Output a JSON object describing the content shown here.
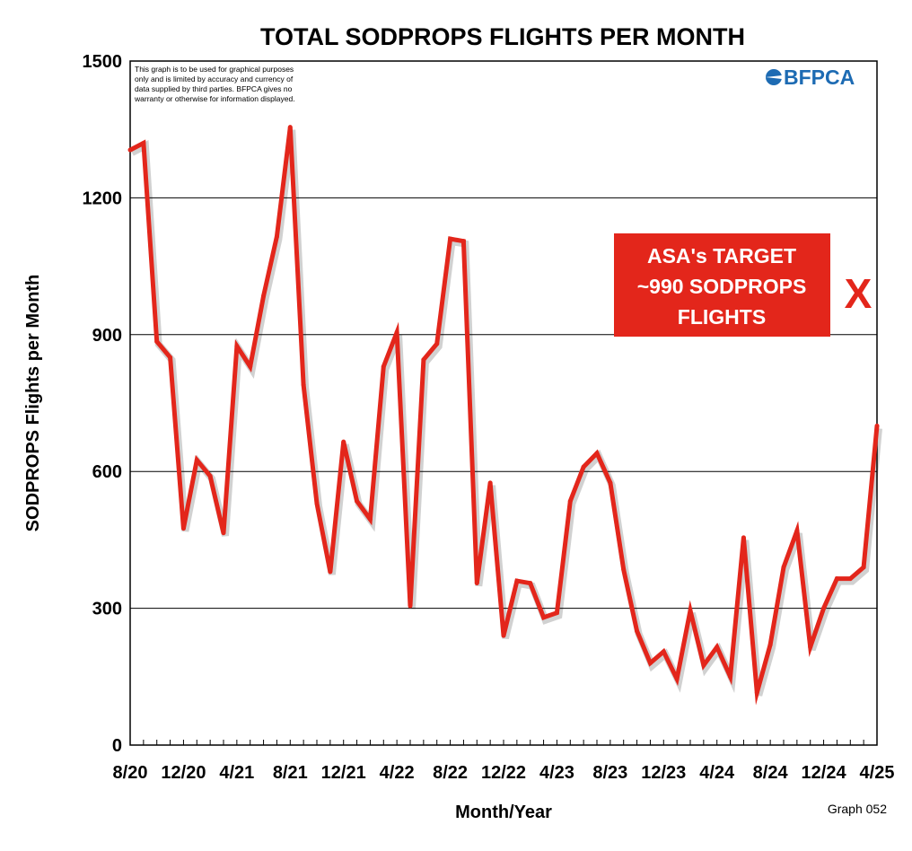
{
  "chart_data": {
    "type": "line",
    "title": "TOTAL SODPROPS FLIGHTS PER MONTH",
    "xlabel": "Month/Year",
    "ylabel": "SODPROPS Flights per Month",
    "ylim": [
      0,
      1500
    ],
    "yticks": [
      0,
      300,
      600,
      900,
      1200,
      1500
    ],
    "grid": true,
    "x_tick_labels": [
      {
        "index": 0,
        "label": "8/20"
      },
      {
        "index": 4,
        "label": "12/20"
      },
      {
        "index": 8,
        "label": "4/21"
      },
      {
        "index": 12,
        "label": "8/21"
      },
      {
        "index": 16,
        "label": "12/21"
      },
      {
        "index": 20,
        "label": "4/22"
      },
      {
        "index": 24,
        "label": "8/22"
      },
      {
        "index": 28,
        "label": "12/22"
      },
      {
        "index": 32,
        "label": "4/23"
      },
      {
        "index": 36,
        "label": "8/23"
      },
      {
        "index": 40,
        "label": "12/23"
      },
      {
        "index": 44,
        "label": "4/24"
      },
      {
        "index": 48,
        "label": "8/24"
      },
      {
        "index": 52,
        "label": "12/24"
      },
      {
        "index": 56,
        "label": "4/25"
      }
    ],
    "series": [
      {
        "color": "#e3261b",
        "values": [
          1305,
          1320,
          885,
          850,
          475,
          625,
          590,
          465,
          875,
          830,
          985,
          1115,
          1355,
          790,
          530,
          380,
          665,
          535,
          495,
          830,
          905,
          305,
          845,
          880,
          1110,
          1105,
          355,
          575,
          240,
          360,
          355,
          280,
          290,
          535,
          610,
          640,
          575,
          385,
          250,
          180,
          205,
          145,
          295,
          175,
          215,
          150,
          455,
          115,
          220,
          390,
          470,
          215,
          300,
          365,
          365,
          390,
          700
        ]
      }
    ],
    "annotations": {
      "disclaimer": [
        "This graph is to be used for graphical purposes",
        "only and is limited by accuracy and currency of",
        "data supplied by third parties. BFPCA gives no",
        "warranty or otherwise for information displayed."
      ],
      "logo_text": "BFPCA",
      "target_lines": [
        "ASA's TARGET",
        "~990 SODPROPS",
        "FLIGHTS"
      ],
      "target_mark": "X",
      "graph_number": "Graph 052"
    }
  },
  "colors": {
    "line": "#e3261b",
    "target_box": "#e3261b",
    "logo": "#1d6bb3"
  }
}
